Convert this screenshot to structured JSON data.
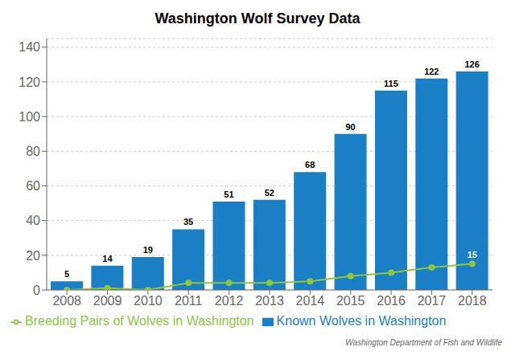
{
  "chart_data": {
    "type": "bar",
    "title": "Washington Wolf Survey Data",
    "categories": [
      "2008",
      "2009",
      "2010",
      "2011",
      "2012",
      "2013",
      "2014",
      "2015",
      "2016",
      "2017",
      "2018"
    ],
    "series": [
      {
        "name": "Known Wolves in Washington",
        "type": "bar",
        "color": "#1a7fc4",
        "values": [
          5,
          14,
          19,
          35,
          51,
          52,
          68,
          90,
          115,
          122,
          126
        ],
        "data_labels": true
      },
      {
        "name": "Breeding Pairs of Wolves in Washington",
        "type": "line",
        "color": "#8dc63f",
        "marker": "o",
        "values": [
          0,
          1,
          0,
          4,
          4,
          4,
          5,
          8,
          10,
          13,
          15
        ]
      }
    ],
    "annotations": [
      {
        "text": "15",
        "x": "2018",
        "y": 15,
        "color": "#ffffff"
      }
    ],
    "source": "Washington Department of Fish and Wildlife",
    "ylim": [
      0,
      145
    ],
    "yticks": [
      0,
      20,
      40,
      60,
      80,
      100,
      120,
      140
    ],
    "grid": true,
    "legend": "lower left"
  }
}
